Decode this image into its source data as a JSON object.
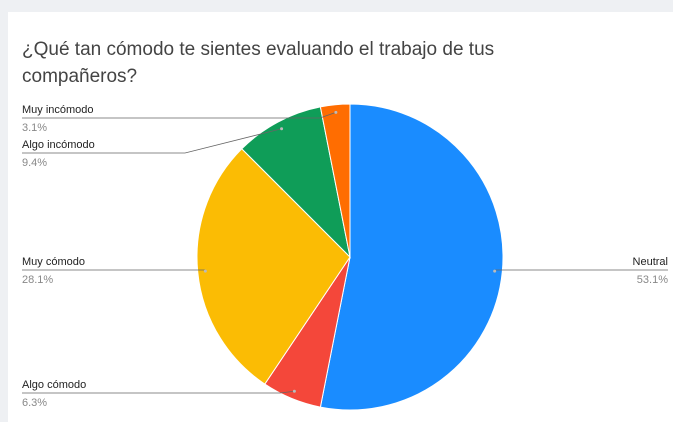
{
  "chart_data": {
    "type": "pie",
    "title": "¿Qué tan cómodo te sientes evaluando el trabajo de tus compañeros?",
    "categories": [
      "Neutral",
      "Algo cómodo",
      "Muy cómodo",
      "Algo incómodo",
      "Muy incómodo"
    ],
    "values": [
      53.1,
      6.3,
      28.1,
      9.4,
      3.1
    ],
    "value_labels": [
      "53.1%",
      "6.3%",
      "28.1%",
      "9.4%",
      "3.1%"
    ],
    "colors": [
      "#1a8cff",
      "#f4473a",
      "#fbbc04",
      "#0f9d58",
      "#ff6d01"
    ]
  }
}
